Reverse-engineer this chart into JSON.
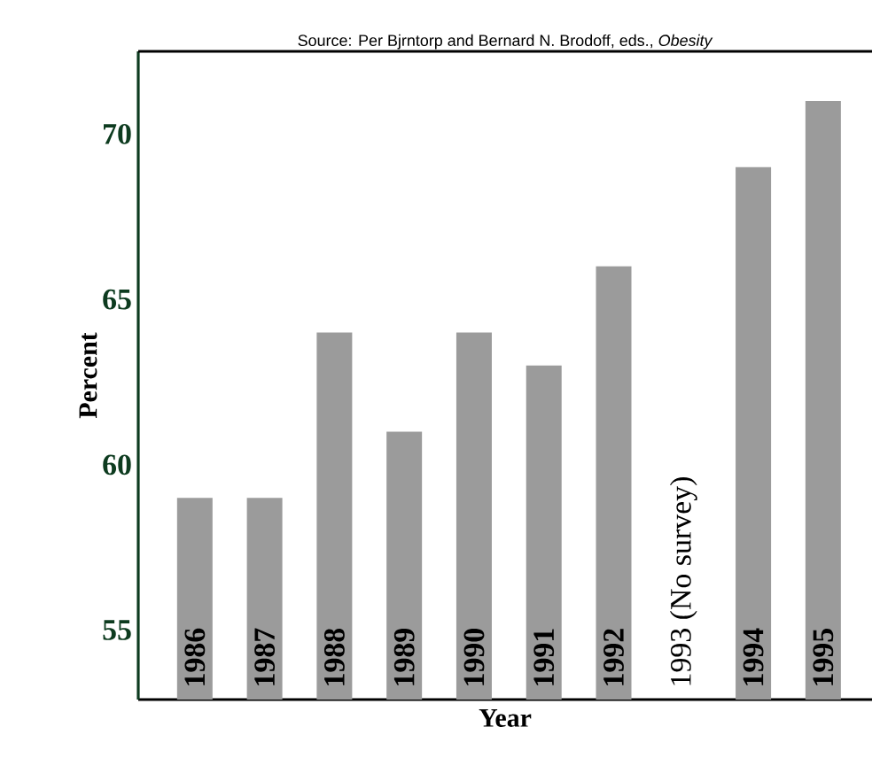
{
  "chart_data": {
    "type": "bar",
    "categories": [
      "1986",
      "1987",
      "1988",
      "1989",
      "1990",
      "1991",
      "1992",
      "1993 (No survey)",
      "1994",
      "1995"
    ],
    "values": [
      59,
      59,
      64,
      61,
      64,
      63,
      66,
      null,
      69,
      71
    ],
    "color": "#9b9b9b",
    "xlabel": "Year",
    "ylabel": "Percent",
    "ylim": [
      52.9,
      72.5
    ],
    "yticks": [
      55,
      60,
      65,
      70
    ],
    "annotations": [
      "Source: Per Bjrntorp and Bernard N. Brodoff, eds., *Obesity*"
    ],
    "grid": false
  }
}
